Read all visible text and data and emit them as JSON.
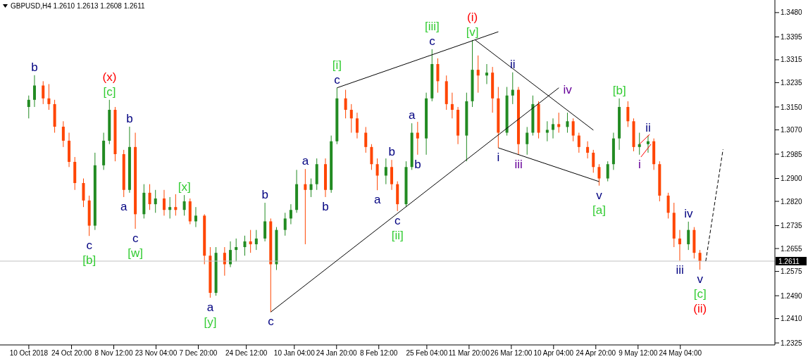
{
  "chart_data": {
    "type": "candlestick",
    "title": "GBPUSD,H4  1.2610 1.2613 1.2608 1.2611",
    "x": [
      "2018-10-10",
      "2018-10-12",
      "2018-10-15",
      "2018-10-17",
      "2018-10-19",
      "2018-10-22",
      "2018-10-24",
      "2018-10-26",
      "2018-10-29",
      "2018-10-31",
      "2018-11-02",
      "2018-11-05",
      "2018-11-07",
      "2018-11-09",
      "2018-11-12",
      "2018-11-14",
      "2018-11-16",
      "2018-11-19",
      "2018-11-21",
      "2018-11-23",
      "2018-11-26",
      "2018-11-28",
      "2018-11-30",
      "2018-12-03",
      "2018-12-05",
      "2018-12-07",
      "2018-12-10",
      "2018-12-12",
      "2018-12-14",
      "2018-12-17",
      "2018-12-19",
      "2018-12-21",
      "2018-12-24",
      "2018-12-26",
      "2018-12-28",
      "2018-12-31",
      "2019-01-02",
      "2019-01-04",
      "2019-01-07",
      "2019-01-09",
      "2019-01-11",
      "2019-01-14",
      "2019-01-16",
      "2019-01-18",
      "2019-01-21",
      "2019-01-23",
      "2019-01-25",
      "2019-01-28",
      "2019-01-30",
      "2019-02-01",
      "2019-02-04",
      "2019-02-06",
      "2019-02-08",
      "2019-02-11",
      "2019-02-13",
      "2019-02-15",
      "2019-02-18",
      "2019-02-20",
      "2019-02-22",
      "2019-02-25",
      "2019-02-27",
      "2019-03-01",
      "2019-03-04",
      "2019-03-06",
      "2019-03-08",
      "2019-03-11",
      "2019-03-13",
      "2019-03-15",
      "2019-03-18",
      "2019-03-20",
      "2019-03-22",
      "2019-03-25",
      "2019-03-27",
      "2019-03-29",
      "2019-04-01",
      "2019-04-03",
      "2019-04-05",
      "2019-04-08",
      "2019-04-10",
      "2019-04-12",
      "2019-04-15",
      "2019-04-17",
      "2019-04-19",
      "2019-04-22",
      "2019-04-24",
      "2019-04-26",
      "2019-04-29",
      "2019-05-01",
      "2019-05-03",
      "2019-05-06",
      "2019-05-08",
      "2019-05-10",
      "2019-05-13",
      "2019-05-15",
      "2019-05-17",
      "2019-05-20",
      "2019-05-22",
      "2019-05-24",
      "2019-05-27",
      "2019-05-29",
      "2019-05-31"
    ],
    "ohlc": [
      [
        1.315,
        1.319,
        1.311,
        1.3175
      ],
      [
        1.3175,
        1.3261,
        1.315,
        1.3225
      ],
      [
        1.3225,
        1.324,
        1.316,
        1.318
      ],
      [
        1.318,
        1.323,
        1.314,
        1.316
      ],
      [
        1.316,
        1.3175,
        1.306,
        1.3081
      ],
      [
        1.3081,
        1.31,
        1.301,
        1.3032
      ],
      [
        1.3032,
        1.306,
        1.294,
        1.2958
      ],
      [
        1.2958,
        1.2975,
        1.286,
        1.2884
      ],
      [
        1.2884,
        1.29,
        1.28,
        1.2823
      ],
      [
        1.2823,
        1.284,
        1.2699,
        1.2735
      ],
      [
        1.2735,
        1.299,
        1.272,
        1.2946
      ],
      [
        1.2946,
        1.306,
        1.293,
        1.3032
      ],
      [
        1.3032,
        1.3175,
        1.302,
        1.314
      ],
      [
        1.314,
        1.315,
        1.296,
        1.2985
      ],
      [
        1.2985,
        1.3,
        1.2835,
        1.286
      ],
      [
        1.286,
        1.3081,
        1.285,
        1.301
      ],
      [
        1.301,
        1.306,
        1.2724,
        1.2775
      ],
      [
        1.2775,
        1.288,
        1.276,
        1.285
      ],
      [
        1.285,
        1.288,
        1.279,
        1.281
      ],
      [
        1.281,
        1.286,
        1.278,
        1.283
      ],
      [
        1.283,
        1.286,
        1.277,
        1.279
      ],
      [
        1.279,
        1.2835,
        1.276,
        1.28
      ],
      [
        1.28,
        1.2845,
        1.277,
        1.279
      ],
      [
        1.279,
        1.2842,
        1.277,
        1.282
      ],
      [
        1.282,
        1.283,
        1.274,
        1.275
      ],
      [
        1.275,
        1.28,
        1.273,
        1.277
      ],
      [
        1.277,
        1.2775,
        1.26,
        1.263
      ],
      [
        1.263,
        1.266,
        1.2483,
        1.25
      ],
      [
        1.25,
        1.266,
        1.249,
        1.264
      ],
      [
        1.264,
        1.266,
        1.256,
        1.26
      ],
      [
        1.26,
        1.268,
        1.259,
        1.265
      ],
      [
        1.265,
        1.269,
        1.261,
        1.266
      ],
      [
        1.266,
        1.27,
        1.263,
        1.268
      ],
      [
        1.268,
        1.272,
        1.264,
        1.267
      ],
      [
        1.267,
        1.272,
        1.265,
        1.269
      ],
      [
        1.269,
        1.2815,
        1.268,
        1.275
      ],
      [
        1.275,
        1.276,
        1.2433,
        1.26
      ],
      [
        1.26,
        1.273,
        1.258,
        1.272
      ],
      [
        1.272,
        1.278,
        1.27,
        1.276
      ],
      [
        1.276,
        1.281,
        1.274,
        1.279
      ],
      [
        1.279,
        1.293,
        1.278,
        1.288
      ],
      [
        1.288,
        1.2933,
        1.267,
        1.286
      ],
      [
        1.286,
        1.29,
        1.2835,
        1.288
      ],
      [
        1.288,
        1.297,
        1.286,
        1.295
      ],
      [
        1.295,
        1.297,
        1.2835,
        1.286
      ],
      [
        1.286,
        1.305,
        1.285,
        1.303
      ],
      [
        1.303,
        1.3217,
        1.302,
        1.318
      ],
      [
        1.318,
        1.321,
        1.311,
        1.314
      ],
      [
        1.314,
        1.316,
        1.306,
        1.311
      ],
      [
        1.311,
        1.313,
        1.304,
        1.306
      ],
      [
        1.306,
        1.308,
        1.299,
        1.301
      ],
      [
        1.301,
        1.302,
        1.293,
        1.295
      ],
      [
        1.295,
        1.297,
        1.2859,
        1.291
      ],
      [
        1.291,
        1.297,
        1.288,
        1.294
      ],
      [
        1.294,
        1.2965,
        1.286,
        1.288
      ],
      [
        1.288,
        1.289,
        1.2786,
        1.281
      ],
      [
        1.281,
        1.296,
        1.28,
        1.294
      ],
      [
        1.294,
        1.3093,
        1.293,
        1.306
      ],
      [
        1.306,
        1.3098,
        1.2983,
        1.304
      ],
      [
        1.304,
        1.32,
        1.2983,
        1.318
      ],
      [
        1.318,
        1.3352,
        1.317,
        1.33
      ],
      [
        1.33,
        1.332,
        1.32,
        1.324
      ],
      [
        1.324,
        1.326,
        1.314,
        1.316
      ],
      [
        1.316,
        1.32,
        1.311,
        1.314
      ],
      [
        1.314,
        1.315,
        1.302,
        1.305
      ],
      [
        1.305,
        1.32,
        1.296,
        1.317
      ],
      [
        1.317,
        1.3384,
        1.315,
        1.328
      ],
      [
        1.328,
        1.333,
        1.32,
        1.326
      ],
      [
        1.326,
        1.33,
        1.323,
        1.327
      ],
      [
        1.327,
        1.329,
        1.313,
        1.318
      ],
      [
        1.318,
        1.322,
        1.3007,
        1.306
      ],
      [
        1.306,
        1.322,
        1.305,
        1.319
      ],
      [
        1.319,
        1.3271,
        1.316,
        1.321
      ],
      [
        1.321,
        1.322,
        1.2983,
        1.302
      ],
      [
        1.302,
        1.308,
        1.2983,
        1.306
      ],
      [
        1.306,
        1.319,
        1.305,
        1.316
      ],
      [
        1.316,
        1.317,
        1.304,
        1.306
      ],
      [
        1.306,
        1.31,
        1.303,
        1.307
      ],
      [
        1.307,
        1.311,
        1.304,
        1.309
      ],
      [
        1.309,
        1.313,
        1.306,
        1.308
      ],
      [
        1.308,
        1.313,
        1.306,
        1.31
      ],
      [
        1.31,
        1.311,
        1.303,
        1.305
      ],
      [
        1.305,
        1.306,
        1.299,
        1.301
      ],
      [
        1.301,
        1.303,
        1.297,
        1.299
      ],
      [
        1.299,
        1.3,
        1.292,
        1.294
      ],
      [
        1.294,
        1.295,
        1.2875,
        1.29
      ],
      [
        1.29,
        1.296,
        1.289,
        1.295
      ],
      [
        1.295,
        1.306,
        1.293,
        1.304
      ],
      [
        1.304,
        1.318,
        1.3,
        1.315
      ],
      [
        1.315,
        1.317,
        1.308,
        1.31
      ],
      [
        1.31,
        1.311,
        1.2995,
        1.301
      ],
      [
        1.301,
        1.306,
        1.2983,
        1.302
      ],
      [
        1.302,
        1.305,
        1.299,
        1.303
      ],
      [
        1.303,
        1.304,
        1.293,
        1.295
      ],
      [
        1.295,
        1.296,
        1.282,
        1.284
      ],
      [
        1.284,
        1.285,
        1.276,
        1.278
      ],
      [
        1.278,
        1.2815,
        1.266,
        1.269
      ],
      [
        1.269,
        1.272,
        1.2613,
        1.267
      ],
      [
        1.267,
        1.2749,
        1.265,
        1.272
      ],
      [
        1.272,
        1.273,
        1.262,
        1.264
      ],
      [
        1.264,
        1.265,
        1.2581,
        1.2611
      ]
    ],
    "colors": [
      "#228b22",
      "#228b22",
      "#ff4500",
      "#ff4500",
      "#ff4500",
      "#ff4500",
      "#ff4500",
      "#ff4500",
      "#ff4500",
      "#ff4500",
      "#228b22",
      "#228b22",
      "#228b22",
      "#ff4500",
      "#ff4500",
      "#228b22",
      "#ff4500",
      "#228b22",
      "#ff4500",
      "#228b22",
      "#ff4500",
      "#228b22",
      "#ff4500",
      "#228b22",
      "#ff4500",
      "#228b22",
      "#ff4500",
      "#ff4500",
      "#228b22",
      "#ff4500",
      "#228b22",
      "#228b22",
      "#228b22",
      "#ff4500",
      "#228b22",
      "#228b22",
      "#ff4500",
      "#228b22",
      "#228b22",
      "#228b22",
      "#228b22",
      "#ff4500",
      "#228b22",
      "#228b22",
      "#ff4500",
      "#228b22",
      "#228b22",
      "#ff4500",
      "#ff4500",
      "#ff4500",
      "#ff4500",
      "#ff4500",
      "#ff4500",
      "#228b22",
      "#ff4500",
      "#ff4500",
      "#228b22",
      "#228b22",
      "#ff4500",
      "#228b22",
      "#228b22",
      "#ff4500",
      "#ff4500",
      "#ff4500",
      "#ff4500",
      "#228b22",
      "#228b22",
      "#ff4500",
      "#228b22",
      "#ff4500",
      "#ff4500",
      "#228b22",
      "#228b22",
      "#ff4500",
      "#228b22",
      "#228b22",
      "#ff4500",
      "#228b22",
      "#228b22",
      "#ff4500",
      "#228b22",
      "#ff4500",
      "#ff4500",
      "#ff4500",
      "#ff4500",
      "#ff4500",
      "#228b22",
      "#228b22",
      "#228b22",
      "#ff4500",
      "#ff4500",
      "#228b22",
      "#228b22",
      "#ff4500",
      "#ff4500",
      "#ff4500",
      "#ff4500",
      "#ff4500",
      "#228b22",
      "#ff4500",
      "#ff4500"
    ],
    "series": [
      {
        "type": "line",
        "color": "#000000",
        "x": [
          "2019-01-25",
          "2019-03-22"
        ],
        "values": [
          1.3217,
          1.3413
        ]
      },
      {
        "type": "line",
        "color": "#000000",
        "x": [
          "2019-01-02",
          "2019-04-12"
        ],
        "values": [
          1.2433,
          1.3217
        ]
      },
      {
        "type": "line",
        "color": "#000000",
        "x": [
          "2019-03-14",
          "2019-04-24"
        ],
        "values": [
          1.3384,
          1.3069
        ]
      },
      {
        "type": "line",
        "color": "#000000",
        "x": [
          "2019-03-22",
          "2019-04-26"
        ],
        "values": [
          1.3007,
          1.2889
        ]
      },
      {
        "type": "line",
        "color": "#ff0000",
        "x": [
          "2019-05-10",
          "2019-05-13T12:00"
        ],
        "values": [
          1.302,
          1.3054
        ]
      },
      {
        "type": "line",
        "color": "#ff0000",
        "x": [
          "2019-05-10T12:00",
          "2019-05-14"
        ],
        "values": [
          1.2975,
          1.302
        ]
      },
      {
        "type": "line",
        "color": "#000000",
        "line_style": "dashed",
        "x": [
          "2019-06-02",
          "2019-06-08"
        ],
        "values": [
          1.2611,
          1.3002
        ]
      }
    ],
    "xlim": [
      "2018-09-30",
      "2019-06-26"
    ],
    "xticks": [
      {
        "value": "2018-10-10",
        "label": "10 Oct 2018"
      },
      {
        "value": "2018-10-24T20:00",
        "label": "24 Oct 20:00"
      },
      {
        "value": "2018-11-08T12:00",
        "label": "8 Nov 12:00"
      },
      {
        "value": "2018-11-23T04:00",
        "label": "23 Nov 04:00"
      },
      {
        "value": "2018-12-07T20:00",
        "label": "7 Dec 20:00"
      },
      {
        "value": "2018-12-24T12:00",
        "label": "24 Dec 12:00"
      },
      {
        "value": "2019-01-10T04:00",
        "label": "10 Jan 04:00"
      },
      {
        "value": "2019-01-24T20:00",
        "label": "24 Jan 20:00"
      },
      {
        "value": "2019-02-08T12:00",
        "label": "8 Feb 12:00"
      },
      {
        "value": "2019-02-25T04:00",
        "label": "25 Feb 04:00"
      },
      {
        "value": "2019-03-11T20:00",
        "label": "11 Mar 20:00"
      },
      {
        "value": "2019-03-26T12:00",
        "label": "26 Mar 12:00"
      },
      {
        "value": "2019-04-10T04:00",
        "label": "10 Apr 04:00"
      },
      {
        "value": "2019-04-24T20:00",
        "label": "24 Apr 20:00"
      },
      {
        "value": "2019-05-09T12:00",
        "label": "9 May 12:00"
      },
      {
        "value": "2019-05-24T04:00",
        "label": "24 May 04:00"
      }
    ],
    "ylim": [
      1.2318,
      1.3524
    ],
    "yticks": [
      {
        "value": 1.2325,
        "label": "1.2325"
      },
      {
        "value": 1.241,
        "label": "1.2410"
      },
      {
        "value": 1.249,
        "label": "1.2490"
      },
      {
        "value": 1.2575,
        "label": "1.2575"
      },
      {
        "value": 1.2655,
        "label": "1.2655"
      },
      {
        "value": 1.2735,
        "label": "1.2735"
      },
      {
        "value": 1.282,
        "label": "1.2820"
      },
      {
        "value": 1.29,
        "label": "1.2900"
      },
      {
        "value": 1.2985,
        "label": "1.2985"
      },
      {
        "value": 1.307,
        "label": "1.3070"
      },
      {
        "value": 1.315,
        "label": "1.3150"
      },
      {
        "value": 1.3235,
        "label": "1.3235"
      },
      {
        "value": 1.3315,
        "label": "1.3315"
      },
      {
        "value": 1.3395,
        "label": "1.3395"
      },
      {
        "value": 1.348,
        "label": "1.3480"
      }
    ],
    "ref_lines": [
      {
        "axis": "y",
        "value": 1.2611,
        "label": "1.2611",
        "color": "#c0c0c0"
      }
    ],
    "annotations": [
      "b",
      "(x)",
      "[c]",
      "c",
      "[b]",
      "a",
      "b",
      "c",
      "[w]",
      "[x]",
      "a",
      "[y]",
      "b",
      "c",
      "a",
      "b",
      "[i]",
      "c",
      "a",
      "b",
      "c",
      "[ii]",
      "a",
      "b",
      "[iii]",
      "c",
      "(i)",
      "[v]",
      "ii",
      "i",
      "iii",
      "iv",
      "v",
      "[a]",
      "[b]",
      "ii",
      "i",
      "iii",
      "iv",
      "v",
      "[c]",
      "(ii)"
    ]
  }
}
